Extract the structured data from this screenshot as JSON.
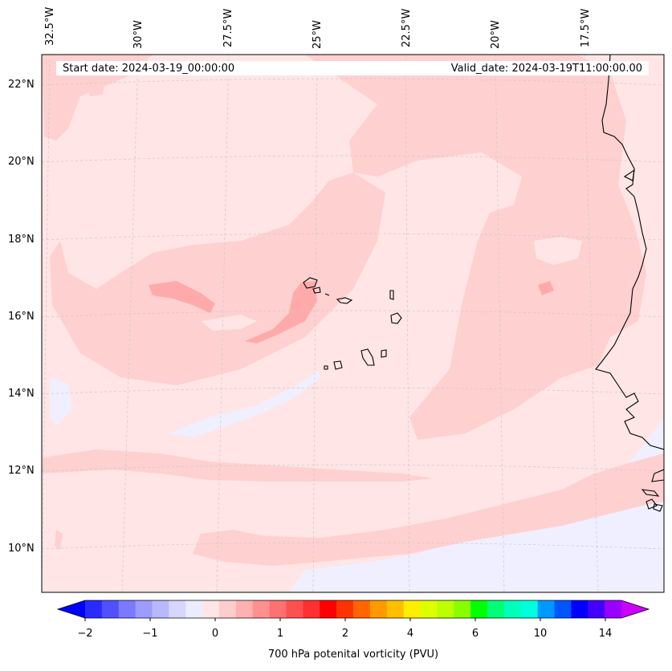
{
  "header": {
    "start_date": "Start date: 2024-03-19_00:00:00",
    "valid_date": "Valid_date: 2024-03-19T11:00:00.00"
  },
  "map": {
    "region": "Cape Verde / West Africa coast",
    "background_color": "#ffe5e5",
    "longitude_labels": [
      "32.5°W",
      "30°W",
      "27.5°W",
      "25°W",
      "22.5°W",
      "20°W",
      "17.5°W"
    ],
    "latitude_labels": [
      "22°N",
      "20°N",
      "18°N",
      "16°N",
      "14°N",
      "12°N",
      "10°N"
    ],
    "gridlines": true
  },
  "colorbar": {
    "title": "700 hPa potenital vorticity (PVU)",
    "tick_labels": [
      "−2",
      "−1",
      "0",
      "1",
      "2",
      "4",
      "6",
      "10",
      "14"
    ],
    "colors": [
      "#0000ff",
      "#2a2aff",
      "#5050ff",
      "#7a7aff",
      "#9c9cff",
      "#b8b8ff",
      "#d6d6ff",
      "#ececff",
      "#ffe5e5",
      "#ffcccc",
      "#ffb0b0",
      "#ff9090",
      "#ff7070",
      "#ff5050",
      "#ff3030",
      "#ff0000",
      "#ff3300",
      "#ff6600",
      "#ff9900",
      "#ffbf00",
      "#ffee00",
      "#ddff00",
      "#bbff00",
      "#88ff00",
      "#00ff00",
      "#00ff77",
      "#00ffbb",
      "#00ffdd",
      "#0099ff",
      "#0055ff",
      "#0000ff",
      "#4400ff",
      "#9900ff",
      "#cc00ff"
    ]
  }
}
